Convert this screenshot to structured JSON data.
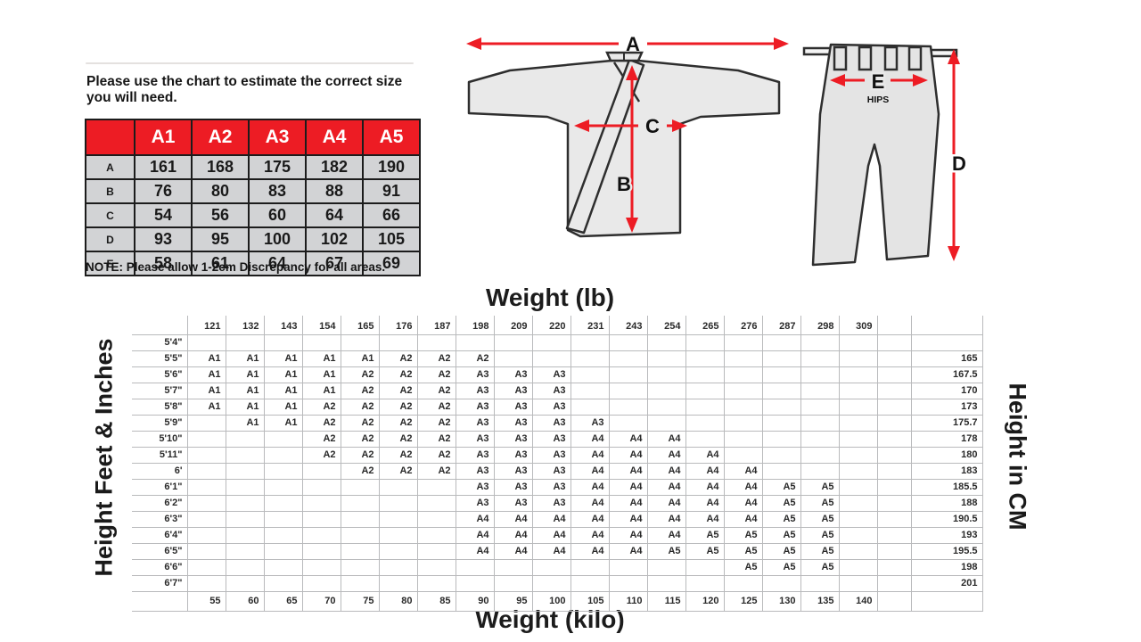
{
  "intro": {
    "title_line1": "Please use the chart to estimate the correct size",
    "title_line2": "you will need.",
    "note_label": "NOTE:",
    "note_text": " Please allow 1-2cm Discrepancy for all areas."
  },
  "size_table": {
    "header": [
      "A1",
      "A2",
      "A3",
      "A4",
      "A5"
    ],
    "rows": [
      {
        "label": "A",
        "values": [
          "161",
          "168",
          "175",
          "182",
          "190"
        ]
      },
      {
        "label": "B",
        "values": [
          "76",
          "80",
          "83",
          "88",
          "91"
        ]
      },
      {
        "label": "C",
        "values": [
          "54",
          "56",
          "60",
          "64",
          "66"
        ]
      },
      {
        "label": "D",
        "values": [
          "93",
          "95",
          "100",
          "102",
          "105"
        ]
      },
      {
        "label": "E",
        "values": [
          "58",
          "61",
          "64",
          "67",
          "69"
        ]
      }
    ]
  },
  "diagrams": {
    "jacket": {
      "wingspan_label": "A",
      "length_label": "B",
      "chest_label": "C"
    },
    "pants": {
      "hips_label": "E",
      "hips_caption": "HIPS",
      "length_label": "D"
    }
  },
  "colors": {
    "accent_red": "#ed1c24",
    "cell_gray": "#d2d3d5",
    "grid_line": "#b9babc",
    "diagram_fill": "#e9e9e9",
    "outline_dark": "#2e2e2e"
  },
  "chart_data": {
    "type": "table",
    "title_top": "Weight (lb)",
    "title_bottom": "Weight (kilo)",
    "axis_left": "Height Feet & Inches",
    "axis_right": "Height in CM",
    "weight_lb": [
      "121",
      "132",
      "143",
      "154",
      "165",
      "176",
      "187",
      "198",
      "209",
      "220",
      "231",
      "243",
      "254",
      "265",
      "276",
      "287",
      "298",
      "309"
    ],
    "weight_kilo": [
      "55",
      "60",
      "65",
      "70",
      "75",
      "80",
      "85",
      "90",
      "95",
      "100",
      "105",
      "110",
      "115",
      "120",
      "125",
      "130",
      "135",
      "140"
    ],
    "rows": [
      {
        "height": "5'4\"",
        "cm": "",
        "sizes": [
          "",
          "",
          "",
          "",
          "",
          "",
          "",
          "",
          "",
          "",
          "",
          "",
          "",
          "",
          "",
          "",
          "",
          ""
        ]
      },
      {
        "height": "5'5\"",
        "cm": "165",
        "sizes": [
          "A1",
          "A1",
          "A1",
          "A1",
          "A1",
          "A2",
          "A2",
          "A2",
          "",
          "",
          "",
          "",
          "",
          "",
          "",
          "",
          "",
          ""
        ]
      },
      {
        "height": "5'6\"",
        "cm": "167.5",
        "sizes": [
          "A1",
          "A1",
          "A1",
          "A1",
          "A2",
          "A2",
          "A2",
          "A3",
          "A3",
          "A3",
          "",
          "",
          "",
          "",
          "",
          "",
          "",
          ""
        ]
      },
      {
        "height": "5'7\"",
        "cm": "170",
        "sizes": [
          "A1",
          "A1",
          "A1",
          "A1",
          "A2",
          "A2",
          "A2",
          "A3",
          "A3",
          "A3",
          "",
          "",
          "",
          "",
          "",
          "",
          "",
          ""
        ]
      },
      {
        "height": "5'8\"",
        "cm": "173",
        "sizes": [
          "A1",
          "A1",
          "A1",
          "A2",
          "A2",
          "A2",
          "A2",
          "A3",
          "A3",
          "A3",
          "",
          "",
          "",
          "",
          "",
          "",
          "",
          ""
        ]
      },
      {
        "height": "5'9\"",
        "cm": "175.7",
        "sizes": [
          "",
          "A1",
          "A1",
          "A2",
          "A2",
          "A2",
          "A2",
          "A3",
          "A3",
          "A3",
          "A3",
          "",
          "",
          "",
          "",
          "",
          "",
          ""
        ]
      },
      {
        "height": "5'10\"",
        "cm": "178",
        "sizes": [
          "",
          "",
          "",
          "A2",
          "A2",
          "A2",
          "A2",
          "A3",
          "A3",
          "A3",
          "A4",
          "A4",
          "A4",
          "",
          "",
          "",
          "",
          ""
        ]
      },
      {
        "height": "5'11\"",
        "cm": "180",
        "sizes": [
          "",
          "",
          "",
          "A2",
          "A2",
          "A2",
          "A2",
          "A3",
          "A3",
          "A3",
          "A4",
          "A4",
          "A4",
          "A4",
          "",
          "",
          "",
          ""
        ]
      },
      {
        "height": "6'",
        "cm": "183",
        "sizes": [
          "",
          "",
          "",
          "",
          "A2",
          "A2",
          "A2",
          "A3",
          "A3",
          "A3",
          "A4",
          "A4",
          "A4",
          "A4",
          "A4",
          "",
          "",
          ""
        ]
      },
      {
        "height": "6'1\"",
        "cm": "185.5",
        "sizes": [
          "",
          "",
          "",
          "",
          "",
          "",
          "",
          "A3",
          "A3",
          "A3",
          "A4",
          "A4",
          "A4",
          "A4",
          "A4",
          "A5",
          "A5",
          ""
        ]
      },
      {
        "height": "6'2\"",
        "cm": "188",
        "sizes": [
          "",
          "",
          "",
          "",
          "",
          "",
          "",
          "A3",
          "A3",
          "A3",
          "A4",
          "A4",
          "A4",
          "A4",
          "A4",
          "A5",
          "A5",
          ""
        ]
      },
      {
        "height": "6'3\"",
        "cm": "190.5",
        "sizes": [
          "",
          "",
          "",
          "",
          "",
          "",
          "",
          "A4",
          "A4",
          "A4",
          "A4",
          "A4",
          "A4",
          "A4",
          "A4",
          "A5",
          "A5",
          ""
        ]
      },
      {
        "height": "6'4\"",
        "cm": "193",
        "sizes": [
          "",
          "",
          "",
          "",
          "",
          "",
          "",
          "A4",
          "A4",
          "A4",
          "A4",
          "A4",
          "A4",
          "A5",
          "A5",
          "A5",
          "A5",
          ""
        ]
      },
      {
        "height": "6'5\"",
        "cm": "195.5",
        "sizes": [
          "",
          "",
          "",
          "",
          "",
          "",
          "",
          "A4",
          "A4",
          "A4",
          "A4",
          "A4",
          "A5",
          "A5",
          "A5",
          "A5",
          "A5",
          ""
        ]
      },
      {
        "height": "6'6\"",
        "cm": "198",
        "sizes": [
          "",
          "",
          "",
          "",
          "",
          "",
          "",
          "",
          "",
          "",
          "",
          "",
          "",
          "",
          "A5",
          "A5",
          "A5",
          ""
        ]
      },
      {
        "height": "6'7\"",
        "cm": "201",
        "sizes": [
          "",
          "",
          "",
          "",
          "",
          "",
          "",
          "",
          "",
          "",
          "",
          "",
          "",
          "",
          "",
          "",
          "",
          ""
        ]
      }
    ]
  }
}
